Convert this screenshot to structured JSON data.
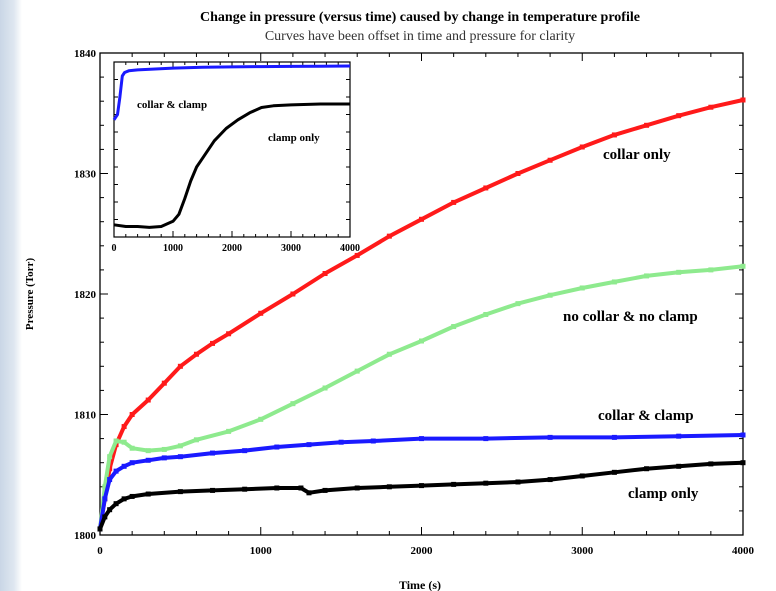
{
  "chart_data": {
    "type": "scatter",
    "title": "Change in pressure (versus time) caused by change in temperature profile",
    "subtitle": "Curves have been offset in time and pressure for clarity",
    "xlabel": "Time (s)",
    "ylabel": "Pressure (Torr)",
    "xlim": [
      0,
      4000
    ],
    "ylim": [
      1800,
      1840
    ],
    "xticks": [
      0,
      1000,
      2000,
      3000,
      4000
    ],
    "yticks": [
      1800,
      1810,
      1820,
      1830,
      1840
    ],
    "grid": false,
    "series": [
      {
        "name": "collar only",
        "color": "#ff1a1a",
        "x": [
          0,
          30,
          60,
          100,
          150,
          200,
          300,
          400,
          500,
          600,
          700,
          800,
          1000,
          1200,
          1400,
          1600,
          1800,
          2000,
          2200,
          2400,
          2600,
          2800,
          3000,
          3200,
          3400,
          3600,
          3800,
          4000
        ],
        "y": [
          1800.5,
          1803.0,
          1805.5,
          1807.5,
          1809.0,
          1810.0,
          1811.2,
          1812.6,
          1814.0,
          1815.0,
          1815.9,
          1816.7,
          1818.4,
          1820.0,
          1821.7,
          1823.2,
          1824.8,
          1826.2,
          1827.6,
          1828.8,
          1830.0,
          1831.1,
          1832.2,
          1833.2,
          1834.0,
          1834.8,
          1835.5,
          1836.1
        ]
      },
      {
        "name": "no collar & no clamp",
        "color": "#8eea8e",
        "x": [
          0,
          30,
          60,
          100,
          150,
          200,
          300,
          400,
          500,
          600,
          800,
          1000,
          1200,
          1400,
          1600,
          1800,
          2000,
          2200,
          2400,
          2600,
          2800,
          3000,
          3200,
          3400,
          3600,
          3800,
          4000
        ],
        "y": [
          1800.5,
          1804.0,
          1806.5,
          1807.8,
          1807.7,
          1807.2,
          1807.0,
          1807.1,
          1807.4,
          1807.9,
          1808.6,
          1809.6,
          1810.9,
          1812.2,
          1813.6,
          1815.0,
          1816.1,
          1817.3,
          1818.3,
          1819.2,
          1819.9,
          1820.5,
          1821.0,
          1821.5,
          1821.8,
          1822.0,
          1822.3
        ]
      },
      {
        "name": "collar & clamp",
        "color": "#1a1aff",
        "x": [
          0,
          30,
          60,
          100,
          150,
          200,
          300,
          400,
          500,
          700,
          900,
          1100,
          1300,
          1500,
          1700,
          2000,
          2400,
          2800,
          3200,
          3600,
          4000
        ],
        "y": [
          1800.5,
          1803.0,
          1804.6,
          1805.3,
          1805.7,
          1806.0,
          1806.2,
          1806.4,
          1806.5,
          1806.8,
          1807.0,
          1807.3,
          1807.5,
          1807.7,
          1807.8,
          1808.0,
          1808.0,
          1808.1,
          1808.1,
          1808.2,
          1808.3
        ]
      },
      {
        "name": "clamp only",
        "color": "#000000",
        "x": [
          0,
          30,
          60,
          100,
          150,
          200,
          300,
          500,
          700,
          900,
          1100,
          1250,
          1300,
          1400,
          1600,
          1800,
          2000,
          2200,
          2400,
          2600,
          2800,
          3000,
          3200,
          3400,
          3600,
          3800,
          4000
        ],
        "y": [
          1800.5,
          1801.5,
          1802.1,
          1802.6,
          1803.0,
          1803.2,
          1803.4,
          1803.6,
          1803.7,
          1803.8,
          1803.9,
          1803.9,
          1803.5,
          1803.7,
          1803.9,
          1804.0,
          1804.1,
          1804.2,
          1804.3,
          1804.4,
          1804.6,
          1804.9,
          1805.2,
          1805.5,
          1805.7,
          1805.9,
          1806.0
        ]
      }
    ],
    "inset": {
      "xlim": [
        0,
        4000
      ],
      "ylim": [
        0,
        1
      ],
      "xticks": [
        0,
        1000,
        2000,
        3000,
        4000
      ],
      "series": [
        {
          "name": "collar & clamp",
          "color": "#1a1aff",
          "x": [
            0,
            60,
            100,
            140,
            180,
            250,
            400,
            700,
            1000,
            1500,
            2000,
            2500,
            3000,
            3500,
            4000
          ],
          "y": [
            0.67,
            0.7,
            0.8,
            0.92,
            0.94,
            0.95,
            0.955,
            0.96,
            0.965,
            0.97,
            0.972,
            0.974,
            0.975,
            0.976,
            0.977
          ]
        },
        {
          "name": "clamp only",
          "color": "#000000",
          "x": [
            0,
            200,
            400,
            600,
            800,
            1000,
            1100,
            1200,
            1300,
            1400,
            1500,
            1700,
            1900,
            2100,
            2300,
            2500,
            2700,
            3000,
            3500,
            4000
          ],
          "y": [
            0.07,
            0.06,
            0.06,
            0.055,
            0.06,
            0.09,
            0.13,
            0.22,
            0.32,
            0.4,
            0.45,
            0.55,
            0.62,
            0.67,
            0.71,
            0.74,
            0.75,
            0.755,
            0.76,
            0.76
          ]
        }
      ]
    },
    "labels": {
      "collar_only": "collar only",
      "no_collar_no_clamp": "no collar & no clamp",
      "collar_clamp": "collar & clamp",
      "clamp_only": "clamp only"
    }
  }
}
